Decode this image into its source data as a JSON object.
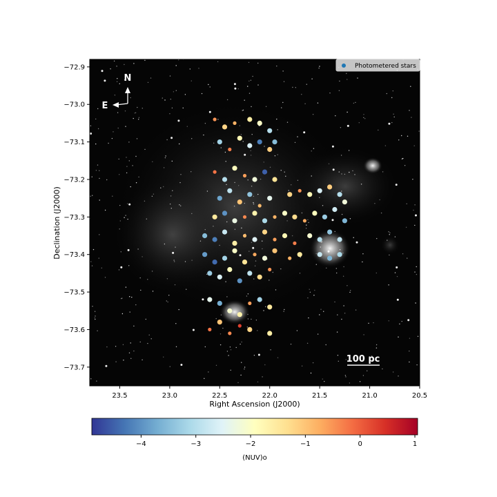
{
  "chart_data": {
    "type": "scatter",
    "title": "",
    "xlabel": "Right Ascension (J2000)",
    "ylabel": "Declination (J2000)",
    "xlim": [
      23.8,
      20.5
    ],
    "ylim": [
      -73.75,
      -72.88
    ],
    "x_ticks": [
      23.5,
      23.0,
      22.5,
      22.0,
      21.5,
      21.0,
      20.5
    ],
    "x_tick_labels": [
      "23.5",
      "23.0",
      "22.5",
      "22.0",
      "21.5",
      "21.0",
      "20.5"
    ],
    "y_ticks": [
      -72.9,
      -73.0,
      -73.1,
      -73.2,
      -73.3,
      -73.4,
      -73.5,
      -73.6,
      -73.7
    ],
    "y_tick_labels": [
      "−72.9",
      "−73.0",
      "−73.1",
      "−73.2",
      "−73.3",
      "−73.4",
      "−73.5",
      "−73.6",
      "−73.7"
    ],
    "legend": {
      "position": "top-right",
      "entries": [
        {
          "label": "Photometered stars",
          "color": "#1f77b4"
        }
      ]
    },
    "colorbar": {
      "label": "(NUV)o",
      "range": [
        -4.9,
        1.05
      ],
      "ticks": [
        -4,
        -3,
        -2,
        -1,
        0,
        1
      ],
      "tick_labels": [
        "−4",
        "−3",
        "−2",
        "−1",
        "0",
        "1"
      ],
      "colormap": "RdYlBu_r"
    },
    "annotations": {
      "north": "N",
      "east": "E",
      "scale_bar": "100 pc"
    },
    "points_note": "approximate sample of photometered stars: [RA, Dec, (NUV)o]",
    "points": [
      [
        22.55,
        -73.04,
        -0.5
      ],
      [
        22.45,
        -73.06,
        -1.2
      ],
      [
        22.35,
        -73.05,
        -0.8
      ],
      [
        22.2,
        -73.04,
        -1.6
      ],
      [
        22.1,
        -73.05,
        -2.0
      ],
      [
        22.0,
        -73.07,
        -3.0
      ],
      [
        22.5,
        -73.1,
        -3.2
      ],
      [
        22.4,
        -73.12,
        -0.3
      ],
      [
        22.3,
        -73.09,
        -1.8
      ],
      [
        22.2,
        -73.11,
        -2.6
      ],
      [
        22.1,
        -73.1,
        -4.2
      ],
      [
        22.0,
        -73.12,
        -1.1
      ],
      [
        21.95,
        -73.1,
        -3.5
      ],
      [
        22.55,
        -73.18,
        -0.2
      ],
      [
        22.45,
        -73.2,
        -3.0
      ],
      [
        22.35,
        -73.17,
        -1.9
      ],
      [
        22.25,
        -73.19,
        -0.6
      ],
      [
        22.15,
        -73.2,
        -2.2
      ],
      [
        22.05,
        -73.18,
        -4.5
      ],
      [
        21.95,
        -73.2,
        -1.4
      ],
      [
        22.5,
        -73.25,
        -3.8
      ],
      [
        22.4,
        -73.23,
        -2.9
      ],
      [
        22.3,
        -73.26,
        -1.0
      ],
      [
        22.2,
        -73.24,
        -3.4
      ],
      [
        22.1,
        -73.27,
        -0.9
      ],
      [
        22.0,
        -73.25,
        -2.4
      ],
      [
        21.8,
        -73.24,
        -1.2
      ],
      [
        21.7,
        -73.23,
        -0.5
      ],
      [
        21.6,
        -73.24,
        -1.8
      ],
      [
        21.5,
        -73.23,
        -2.6
      ],
      [
        21.4,
        -73.22,
        -1.1
      ],
      [
        21.3,
        -73.24,
        -3.0
      ],
      [
        21.25,
        -73.26,
        -2.2
      ],
      [
        22.55,
        -73.3,
        -1.5
      ],
      [
        22.45,
        -73.29,
        -4.0
      ],
      [
        22.35,
        -73.31,
        -2.3
      ],
      [
        22.25,
        -73.3,
        -0.4
      ],
      [
        22.15,
        -73.29,
        -1.7
      ],
      [
        22.05,
        -73.31,
        -3.1
      ],
      [
        21.95,
        -73.3,
        -0.8
      ],
      [
        21.85,
        -73.29,
        -2.0
      ],
      [
        21.75,
        -73.3,
        -1.3
      ],
      [
        21.65,
        -73.31,
        -0.7
      ],
      [
        21.55,
        -73.29,
        -1.9
      ],
      [
        21.45,
        -73.3,
        -3.3
      ],
      [
        21.35,
        -73.28,
        -2.7
      ],
      [
        21.25,
        -73.31,
        -3.6
      ],
      [
        22.65,
        -73.35,
        -3.5
      ],
      [
        22.55,
        -73.36,
        -4.2
      ],
      [
        22.45,
        -73.34,
        -2.8
      ],
      [
        22.35,
        -73.37,
        -1.6
      ],
      [
        22.25,
        -73.35,
        -0.9
      ],
      [
        22.15,
        -73.36,
        -2.5
      ],
      [
        22.05,
        -73.34,
        -1.2
      ],
      [
        21.95,
        -73.36,
        -0.6
      ],
      [
        21.85,
        -73.35,
        -1.8
      ],
      [
        21.75,
        -73.37,
        -0.3
      ],
      [
        21.6,
        -73.35,
        -2.1
      ],
      [
        21.5,
        -73.36,
        -3.0
      ],
      [
        21.4,
        -73.34,
        -3.4
      ],
      [
        21.3,
        -73.36,
        -2.9
      ],
      [
        22.65,
        -73.4,
        -3.9
      ],
      [
        22.55,
        -73.42,
        -4.4
      ],
      [
        22.45,
        -73.41,
        -3.2
      ],
      [
        22.35,
        -73.39,
        -2.0
      ],
      [
        22.25,
        -73.42,
        -1.4
      ],
      [
        22.15,
        -73.4,
        -0.7
      ],
      [
        22.05,
        -73.41,
        -2.2
      ],
      [
        21.95,
        -73.39,
        -1.0
      ],
      [
        21.8,
        -73.41,
        -0.8
      ],
      [
        21.7,
        -73.4,
        -1.5
      ],
      [
        21.5,
        -73.4,
        -2.8
      ],
      [
        21.4,
        -73.41,
        -3.6
      ],
      [
        21.3,
        -73.4,
        -3.1
      ],
      [
        22.6,
        -73.45,
        -3.3
      ],
      [
        22.5,
        -73.46,
        -2.6
      ],
      [
        22.4,
        -73.44,
        -1.9
      ],
      [
        22.3,
        -73.47,
        -4.0
      ],
      [
        22.2,
        -73.45,
        -2.9
      ],
      [
        22.1,
        -73.46,
        -1.3
      ],
      [
        22.0,
        -73.44,
        -0.5
      ],
      [
        22.6,
        -73.52,
        -2.4
      ],
      [
        22.5,
        -73.53,
        -3.7
      ],
      [
        22.4,
        -73.55,
        -2.1
      ],
      [
        22.3,
        -73.56,
        -1.7
      ],
      [
        22.2,
        -73.53,
        -0.6
      ],
      [
        22.1,
        -73.52,
        -3.2
      ],
      [
        22.0,
        -73.54,
        -1.5
      ],
      [
        22.6,
        -73.6,
        -0.2
      ],
      [
        22.5,
        -73.58,
        -1.0
      ],
      [
        22.4,
        -73.61,
        -0.4
      ],
      [
        22.3,
        -73.59,
        0.3
      ],
      [
        22.2,
        -73.6,
        -1.2
      ],
      [
        22.0,
        -73.61,
        -1.6
      ]
    ]
  }
}
